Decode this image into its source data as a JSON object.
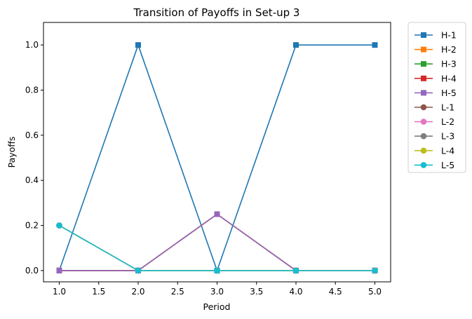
{
  "chart_data": {
    "type": "line",
    "title": "Transition of Payoffs in Set-up 3",
    "xlabel": "Period",
    "ylabel": "Payoffs",
    "x": [
      1,
      2,
      3,
      4,
      5
    ],
    "xlim": [
      0.8,
      5.2
    ],
    "ylim": [
      -0.05,
      1.1
    ],
    "xticks": [
      1.0,
      1.5,
      2.0,
      2.5,
      3.0,
      3.5,
      4.0,
      4.5,
      5.0
    ],
    "xtick_labels": [
      "1.0",
      "1.5",
      "2.0",
      "2.5",
      "3.0",
      "3.5",
      "4.0",
      "4.5",
      "5.0"
    ],
    "yticks": [
      0.0,
      0.2,
      0.4,
      0.6,
      0.8,
      1.0
    ],
    "ytick_labels": [
      "0.0",
      "0.2",
      "0.4",
      "0.6",
      "0.8",
      "1.0"
    ],
    "grid": false,
    "legend_position": "outside-top-right",
    "series": [
      {
        "name": "H-1",
        "marker": "square",
        "color": "#1f77b4",
        "values": [
          0,
          1,
          0,
          1,
          1
        ]
      },
      {
        "name": "H-2",
        "marker": "square",
        "color": "#ff7f0e",
        "values": [
          0,
          0,
          0.25,
          0,
          0
        ]
      },
      {
        "name": "H-3",
        "marker": "square",
        "color": "#2ca02c",
        "values": [
          0,
          0,
          0.25,
          0,
          0
        ]
      },
      {
        "name": "H-4",
        "marker": "square",
        "color": "#d62728",
        "values": [
          0,
          0,
          0.25,
          0,
          0
        ]
      },
      {
        "name": "H-5",
        "marker": "square",
        "color": "#9467bd",
        "values": [
          0,
          0,
          0.25,
          0,
          0
        ]
      },
      {
        "name": "L-1",
        "marker": "circle",
        "color": "#8c564b",
        "values": [
          0.2,
          0,
          0,
          0,
          0
        ]
      },
      {
        "name": "L-2",
        "marker": "circle",
        "color": "#e377c2",
        "values": [
          0.2,
          0,
          0,
          0,
          0
        ]
      },
      {
        "name": "L-3",
        "marker": "circle",
        "color": "#7f7f7f",
        "values": [
          0.2,
          0,
          0,
          0,
          0
        ]
      },
      {
        "name": "L-4",
        "marker": "circle",
        "color": "#bcbd22",
        "values": [
          0.2,
          0,
          0,
          0,
          0
        ]
      },
      {
        "name": "L-5",
        "marker": "circle",
        "color": "#17becf",
        "values": [
          0.2,
          0,
          0,
          0,
          0
        ]
      }
    ]
  }
}
